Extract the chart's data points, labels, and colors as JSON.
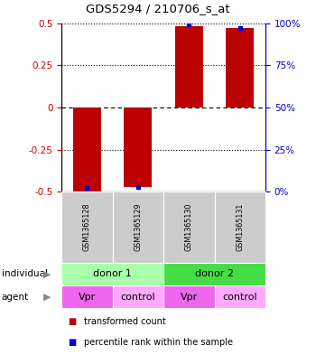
{
  "title": "GDS5294 / 210706_s_at",
  "samples": [
    "GSM1365128",
    "GSM1365129",
    "GSM1365130",
    "GSM1365131"
  ],
  "red_bars": [
    -0.5,
    -0.47,
    0.48,
    0.47
  ],
  "blue_markers": [
    2.0,
    3.0,
    99.0,
    97.0
  ],
  "ylim_left": [
    -0.5,
    0.5
  ],
  "ylim_right": [
    0,
    100
  ],
  "left_ticks": [
    -0.5,
    -0.25,
    0,
    0.25,
    0.5
  ],
  "right_ticks": [
    0,
    25,
    50,
    75,
    100
  ],
  "individual_groups": [
    {
      "label": "donor 1",
      "cols": [
        0,
        1
      ],
      "color": "#aaffaa"
    },
    {
      "label": "donor 2",
      "cols": [
        2,
        3
      ],
      "color": "#44dd44"
    }
  ],
  "agent_groups": [
    {
      "label": "Vpr",
      "col": 0,
      "color": "#ee66ee"
    },
    {
      "label": "control",
      "col": 1,
      "color": "#ffaaff"
    },
    {
      "label": "Vpr",
      "col": 2,
      "color": "#ee66ee"
    },
    {
      "label": "control",
      "col": 3,
      "color": "#ffaaff"
    }
  ],
  "gsm_bg_color": "#cccccc",
  "bar_color_red": "#bb0000",
  "bar_color_blue": "#0000cc",
  "bar_width": 0.55,
  "legend_red_label": "transformed count",
  "legend_blue_label": "percentile rank within the sample",
  "left_axis_color": "#cc0000",
  "right_axis_color": "#0000cc"
}
